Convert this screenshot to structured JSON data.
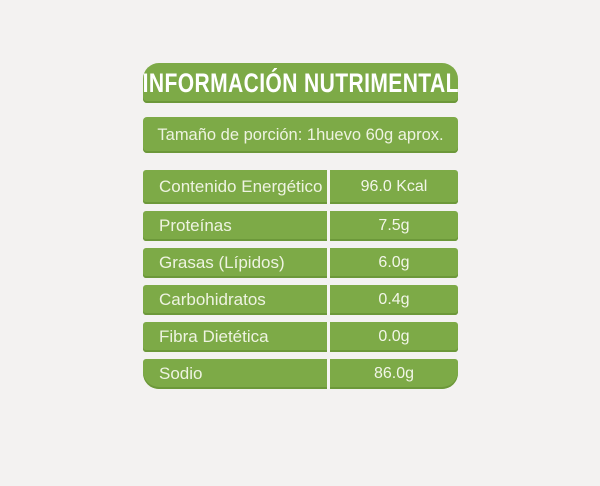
{
  "colors": {
    "green": "#7daa47",
    "green_edge": "#6c983a",
    "page_bg": "#f3f2f1",
    "divider": "#f6f5f2",
    "label_text": "#eef3e1",
    "header_text": "#ffffff"
  },
  "header": {
    "title": "INFORMACIÓN NUTRIMENTAL"
  },
  "serving": {
    "text": "Tamaño de porción: 1huevo 60g aprox."
  },
  "table": {
    "rows": [
      {
        "label": "Contenido Energético",
        "value": "96.0 Kcal"
      },
      {
        "label": "Proteínas",
        "value": "7.5g"
      },
      {
        "label": "Grasas (Lípidos)",
        "value": "6.0g"
      },
      {
        "label": "Carbohidratos",
        "value": "0.4g"
      },
      {
        "label": "Fibra Dietética",
        "value": "0.0g"
      },
      {
        "label": "Sodio",
        "value": "86.0g"
      }
    ]
  }
}
